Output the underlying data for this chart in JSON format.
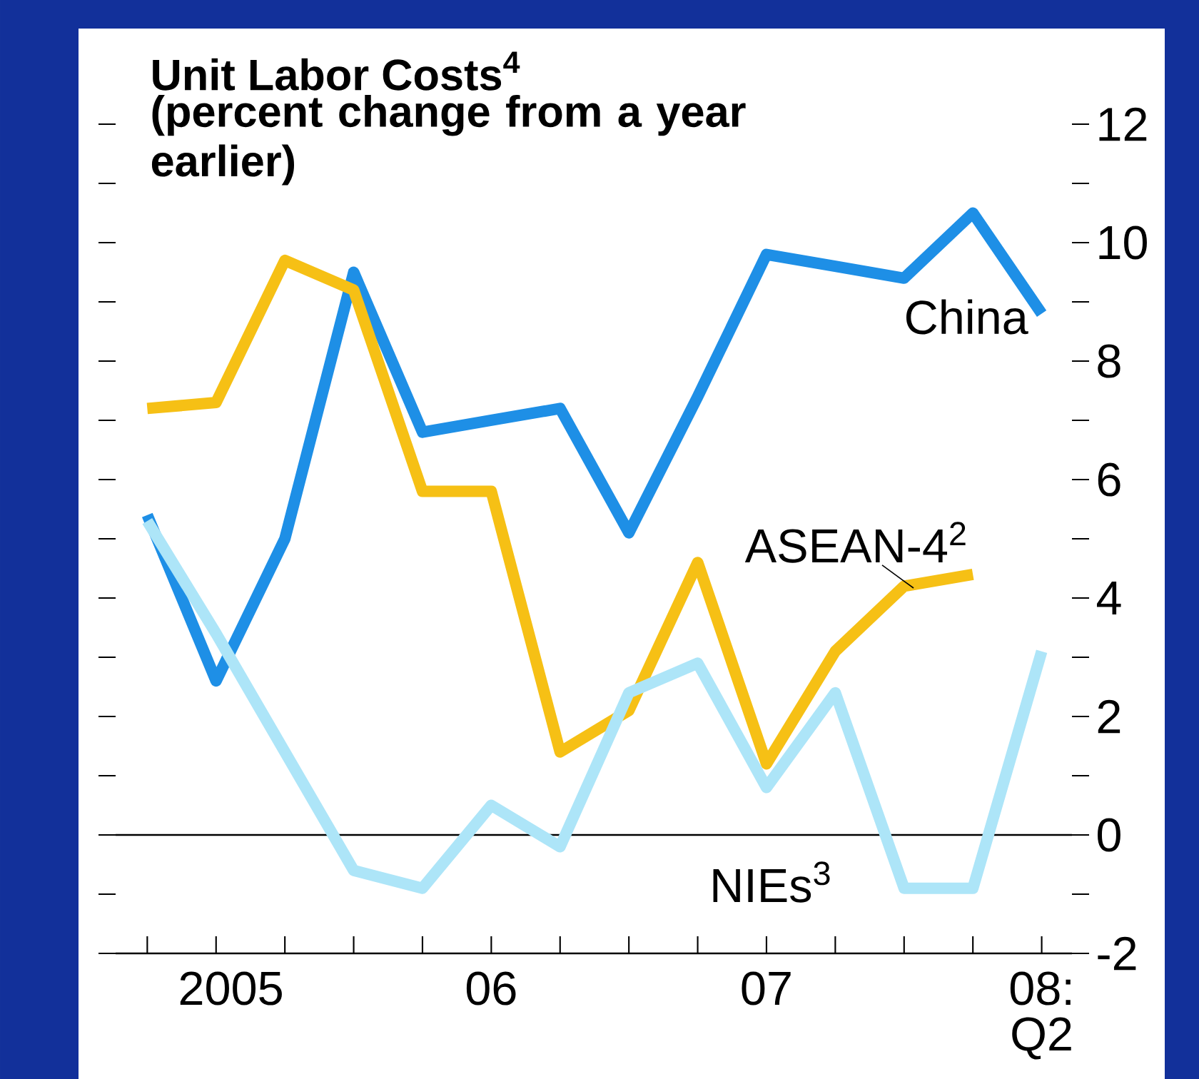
{
  "chart_data": {
    "type": "line",
    "title": "Unit Labor Costs$^{4}$",
    "subtitle": "(percent change from a year earlier)",
    "categories": [
      null,
      "2005",
      null,
      null,
      null,
      "06",
      null,
      null,
      null,
      "07",
      null,
      null,
      null,
      "08: Q2"
    ],
    "series": [
      {
        "name": "China",
        "color": "#1e8fe6",
        "values": [
          5.4,
          2.6,
          5.0,
          9.5,
          6.8,
          7.0,
          7.2,
          5.1,
          7.4,
          9.8,
          9.6,
          9.4,
          10.5,
          8.8
        ]
      },
      {
        "name": "ASEAN-4$^{2}$",
        "color": "#f6c015",
        "values": [
          7.2,
          7.3,
          9.7,
          9.2,
          5.8,
          5.8,
          1.4,
          2.1,
          4.6,
          1.2,
          3.1,
          4.2,
          4.4,
          null
        ]
      },
      {
        "name": "NIEs$^{3}$",
        "color": "#ade5f8",
        "values": [
          5.3,
          3.4,
          1.4,
          -0.6,
          -0.9,
          0.5,
          -0.2,
          2.4,
          2.9,
          0.8,
          2.4,
          -0.9,
          -0.9,
          3.1
        ]
      }
    ],
    "ylim": [
      -2,
      12
    ],
    "yticks": [
      -2,
      {
        "value": -1,
        "label": null
      },
      0,
      {
        "value": 1,
        "label": null
      },
      2,
      {
        "value": 3,
        "label": null
      },
      4,
      {
        "value": 5,
        "label": null
      },
      6,
      {
        "value": 7,
        "label": null
      },
      8,
      {
        "value": 9,
        "label": null
      },
      10,
      {
        "value": 11,
        "label": null
      },
      12
    ],
    "ref_lines": [
      {
        "axis": "y",
        "value": 0,
        "color": "#000000"
      }
    ]
  }
}
